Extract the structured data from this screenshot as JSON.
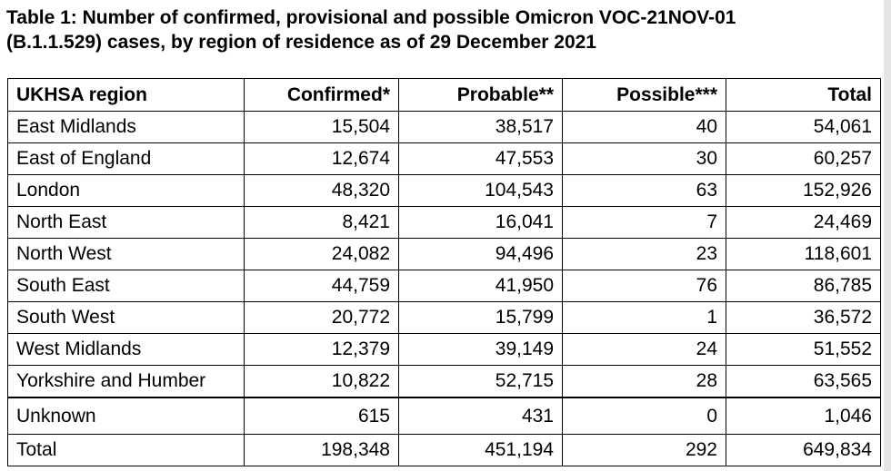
{
  "caption": {
    "line1": "Table 1: Number of confirmed, provisional and possible Omicron VOC-21NOV-01",
    "line2": "(B.1.1.529) cases, by region of residence as of 29 December 2021"
  },
  "table": {
    "headers": [
      "UKHSA region",
      "Confirmed*",
      "Probable**",
      "Possible***",
      "Total"
    ],
    "rows": [
      [
        "East Midlands",
        "15,504",
        "38,517",
        "40",
        "54,061"
      ],
      [
        "East of England",
        "12,674",
        "47,553",
        "30",
        "60,257"
      ],
      [
        "London",
        "48,320",
        "104,543",
        "63",
        "152,926"
      ],
      [
        "North East",
        "8,421",
        "16,041",
        "7",
        "24,469"
      ],
      [
        "North West",
        "24,082",
        "94,496",
        "23",
        "118,601"
      ],
      [
        "South East",
        "44,759",
        "41,950",
        "76",
        "86,785"
      ],
      [
        "South West",
        "20,772",
        "15,799",
        "1",
        "36,572"
      ],
      [
        "West Midlands",
        "12,379",
        "39,149",
        "24",
        "51,552"
      ],
      [
        "Yorkshire and Humber",
        "10,822",
        "52,715",
        "28",
        "63,565"
      ],
      [
        "Unknown",
        "615",
        "431",
        "0",
        "1,046"
      ],
      [
        "Total",
        "198,348",
        "451,194",
        "292",
        "649,834"
      ]
    ]
  }
}
